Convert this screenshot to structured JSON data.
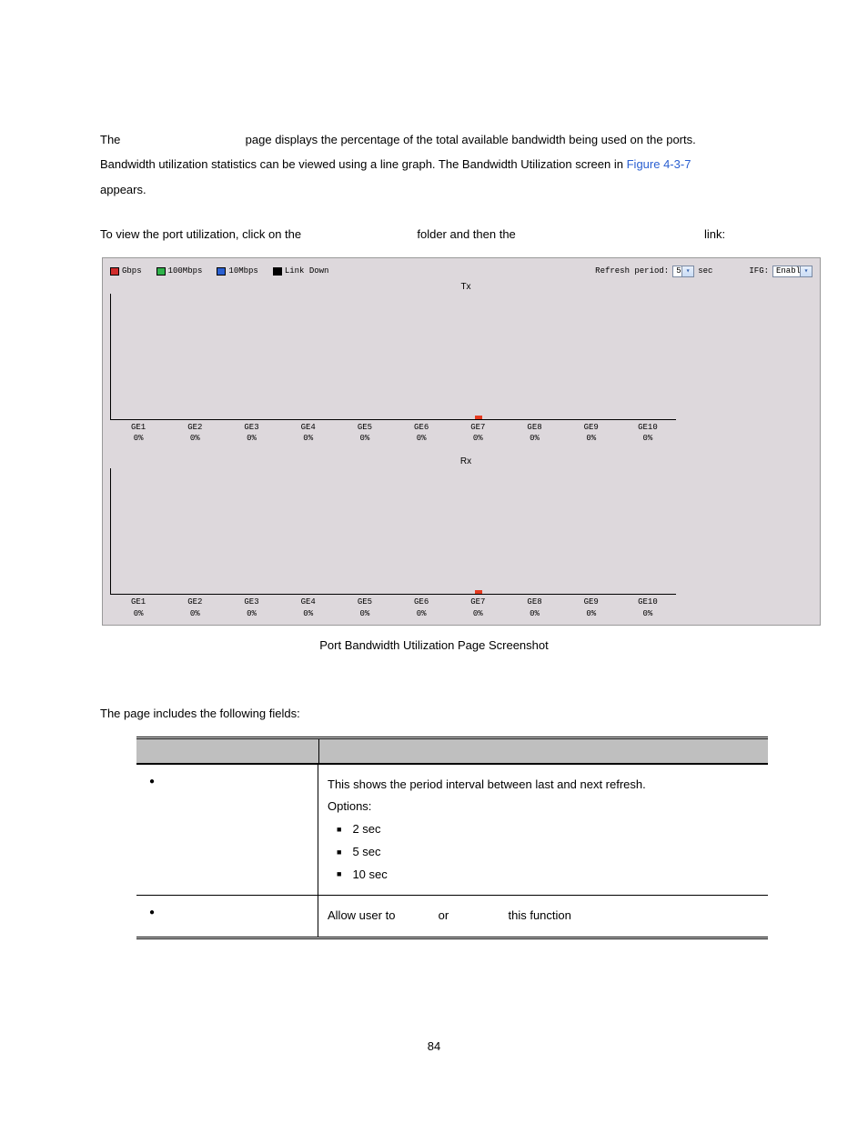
{
  "intro": {
    "line1_a": "The",
    "line1_b": "page displays the percentage of the total available bandwidth being used on the ports.",
    "line2_a": "Bandwidth utilization statistics can be viewed using a line graph. The Bandwidth Utilization screen in",
    "line2_link": "Figure 4-3-7",
    "line3": "appears.",
    "line_util_a": "To view the port utilization, click on the",
    "line_util_b": "folder and then the",
    "line_util_c": "link:"
  },
  "screenshot": {
    "background_color": "#ddd8dc",
    "legend": {
      "items": [
        {
          "label": "Gbps",
          "color": "#d12d2d"
        },
        {
          "label": "100Mbps",
          "color": "#2fb24a"
        },
        {
          "label": "10Mbps",
          "color": "#2a5fd1"
        },
        {
          "label": "Link Down",
          "color": "#000000"
        }
      ]
    },
    "refresh": {
      "label": "Refresh period:",
      "value": "5",
      "unit": "sec"
    },
    "ifg": {
      "label": "IFG:",
      "value": "Enable"
    },
    "charts": {
      "tx": {
        "title": "Tx",
        "tick_color": "#e63a1f",
        "tick_port_index": 6,
        "ports": [
          {
            "name": "GE1",
            "pct": "0%"
          },
          {
            "name": "GE2",
            "pct": "0%"
          },
          {
            "name": "GE3",
            "pct": "0%"
          },
          {
            "name": "GE4",
            "pct": "0%"
          },
          {
            "name": "GE5",
            "pct": "0%"
          },
          {
            "name": "GE6",
            "pct": "0%"
          },
          {
            "name": "GE7",
            "pct": "0%"
          },
          {
            "name": "GE8",
            "pct": "0%"
          },
          {
            "name": "GE9",
            "pct": "0%"
          },
          {
            "name": "GE10",
            "pct": "0%"
          }
        ]
      },
      "rx": {
        "title": "Rx",
        "tick_color": "#e63a1f",
        "tick_port_index": 6,
        "ports": [
          {
            "name": "GE1",
            "pct": "0%"
          },
          {
            "name": "GE2",
            "pct": "0%"
          },
          {
            "name": "GE3",
            "pct": "0%"
          },
          {
            "name": "GE4",
            "pct": "0%"
          },
          {
            "name": "GE5",
            "pct": "0%"
          },
          {
            "name": "GE6",
            "pct": "0%"
          },
          {
            "name": "GE7",
            "pct": "0%"
          },
          {
            "name": "GE8",
            "pct": "0%"
          },
          {
            "name": "GE9",
            "pct": "0%"
          },
          {
            "name": "GE10",
            "pct": "0%"
          }
        ]
      }
    },
    "caption": "Port Bandwidth Utilization Page Screenshot"
  },
  "fields_intro": "The page includes the following fields:",
  "table": {
    "header_bg": "#bfbfbf",
    "rows": [
      {
        "desc_intro": "This shows the period interval between last and next refresh.",
        "desc_options_label": "Options:",
        "options": [
          "2 sec",
          "5 sec",
          "10 sec"
        ]
      },
      {
        "desc_parts": {
          "a": "Allow user to",
          "b": "or",
          "c": "this function"
        }
      }
    ]
  },
  "page_number": "84"
}
